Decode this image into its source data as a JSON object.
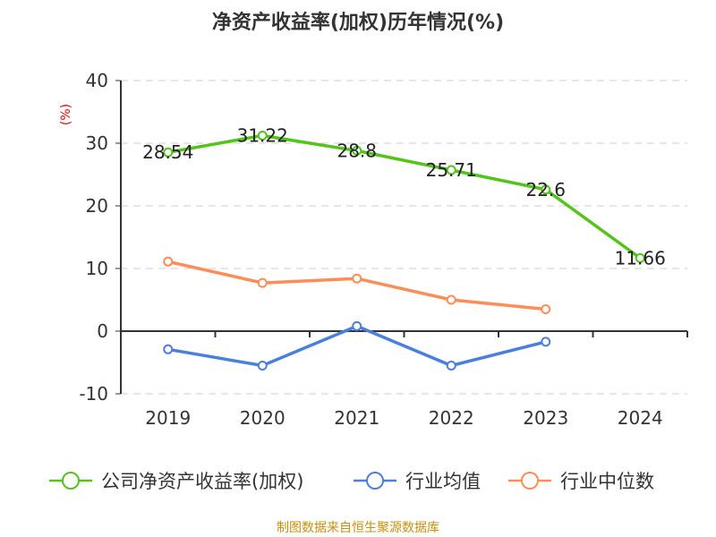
{
  "chart_data": {
    "type": "line",
    "title": "净资产收益率(加权)历年情况(%)",
    "ylabel": "(%)",
    "categories": [
      "2019",
      "2020",
      "2021",
      "2022",
      "2023",
      "2024"
    ],
    "ylim": [
      -10,
      40
    ],
    "yticks": [
      -10,
      0,
      10,
      20,
      30,
      40
    ],
    "grid": true,
    "legend_position": "bottom",
    "series": [
      {
        "name": "公司净资产收益率(加权)",
        "color": "#52c41a",
        "values": [
          28.54,
          31.22,
          28.8,
          25.71,
          22.6,
          11.66
        ],
        "labels": [
          "28.54",
          "31.22",
          "28.8",
          "25.71",
          "22.6",
          "11.66"
        ]
      },
      {
        "name": "行业均值",
        "color": "#4a7fe0",
        "values": [
          -2.9,
          -5.5,
          0.8,
          -5.5,
          -1.7,
          null
        ]
      },
      {
        "name": "行业中位数",
        "color": "#ff8c55",
        "values": [
          11.1,
          7.7,
          8.4,
          5.0,
          3.5,
          null
        ]
      }
    ],
    "source": "制图数据来自恒生聚源数据库"
  }
}
